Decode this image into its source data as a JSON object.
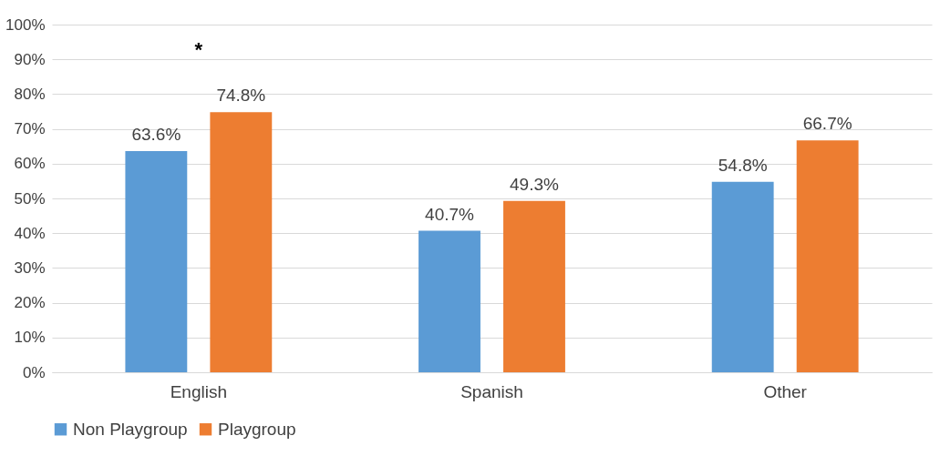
{
  "chart_data": {
    "type": "bar",
    "categories": [
      "English",
      "Spanish",
      "Other"
    ],
    "series": [
      {
        "name": "Non Playgroup",
        "color": "#5b9bd5",
        "values": [
          63.6,
          40.7,
          54.8
        ],
        "value_labels": [
          "63.6%",
          "40.7%",
          "54.8%"
        ]
      },
      {
        "name": "Playgroup",
        "color": "#ed7d31",
        "values": [
          74.8,
          49.3,
          66.7
        ],
        "value_labels": [
          "74.8%",
          "49.3%",
          "66.7%"
        ]
      }
    ],
    "ylim": [
      0,
      100
    ],
    "yticks": [
      {
        "value": 0,
        "label": "0%"
      },
      {
        "value": 10,
        "label": "10%"
      },
      {
        "value": 20,
        "label": "20%"
      },
      {
        "value": 30,
        "label": "30%"
      },
      {
        "value": 40,
        "label": "40%"
      },
      {
        "value": 50,
        "label": "50%"
      },
      {
        "value": 60,
        "label": "60%"
      },
      {
        "value": 70,
        "label": "70%"
      },
      {
        "value": 80,
        "label": "80%"
      },
      {
        "value": 90,
        "label": "90%"
      },
      {
        "value": 100,
        "label": "100%"
      }
    ],
    "grid": "y",
    "legend": "bottom",
    "annotations": [
      "*"
    ]
  }
}
